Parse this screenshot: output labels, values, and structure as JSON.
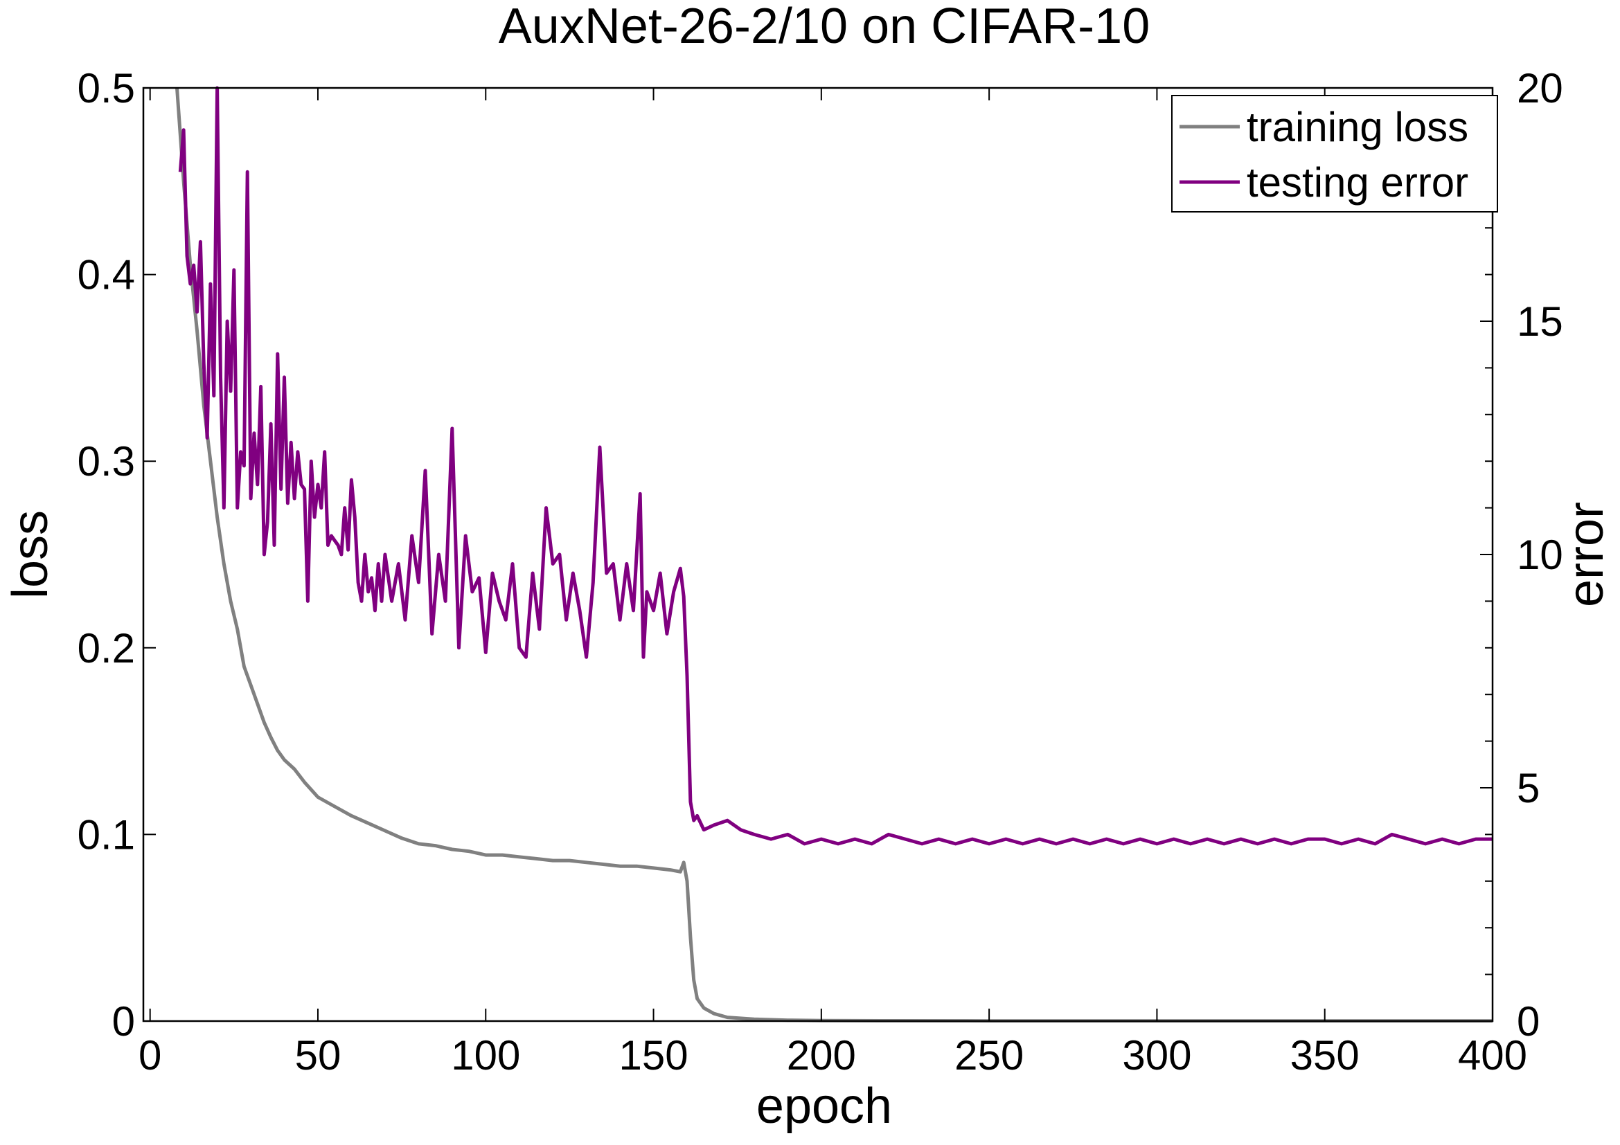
{
  "chart_data": {
    "type": "line",
    "title": "AuxNet-26-2/10 on CIFAR-10",
    "xlabel": "epoch",
    "ylabel": "loss",
    "y2label": "error",
    "xlim": [
      -2,
      400
    ],
    "ylim": [
      0,
      0.5
    ],
    "y2lim": [
      0,
      20
    ],
    "xticks": [
      0,
      50,
      100,
      150,
      200,
      250,
      300,
      350,
      400
    ],
    "yticks": [
      "0",
      "0.1",
      "0.2",
      "0.3",
      "0.4",
      "0.5"
    ],
    "y2ticks": [
      0,
      5,
      10,
      15,
      20
    ],
    "grid": false,
    "legend": "top-right",
    "series": [
      {
        "name": "training loss",
        "axis": "left",
        "color": "#808080",
        "x": [
          8,
          10,
          12,
          14,
          16,
          18,
          20,
          22,
          24,
          26,
          28,
          30,
          32,
          34,
          36,
          38,
          40,
          43,
          46,
          50,
          55,
          60,
          65,
          70,
          75,
          80,
          85,
          90,
          95,
          100,
          105,
          110,
          115,
          120,
          125,
          130,
          135,
          140,
          145,
          150,
          155,
          158,
          159,
          160,
          161,
          162,
          163,
          165,
          168,
          172,
          180,
          190,
          200,
          220,
          250,
          300,
          350,
          400
        ],
        "y": [
          0.5,
          0.45,
          0.405,
          0.37,
          0.33,
          0.3,
          0.27,
          0.245,
          0.225,
          0.21,
          0.19,
          0.18,
          0.17,
          0.16,
          0.152,
          0.145,
          0.14,
          0.135,
          0.128,
          0.12,
          0.115,
          0.11,
          0.106,
          0.102,
          0.098,
          0.095,
          0.094,
          0.092,
          0.091,
          0.089,
          0.089,
          0.088,
          0.087,
          0.086,
          0.086,
          0.085,
          0.084,
          0.083,
          0.083,
          0.082,
          0.081,
          0.08,
          0.085,
          0.075,
          0.045,
          0.022,
          0.012,
          0.007,
          0.004,
          0.002,
          0.001,
          0.0005,
          0.0003,
          0.0002,
          0.0001,
          0.0001,
          0.0001,
          0.0001
        ]
      },
      {
        "name": "testing error",
        "axis": "right",
        "color": "#800080",
        "x": [
          9,
          10,
          11,
          12,
          13,
          14,
          15,
          16,
          17,
          18,
          19,
          20,
          21,
          22,
          23,
          24,
          25,
          26,
          27,
          28,
          29,
          30,
          31,
          32,
          33,
          34,
          35,
          36,
          37,
          38,
          39,
          40,
          41,
          42,
          43,
          44,
          45,
          46,
          47,
          48,
          49,
          50,
          51,
          52,
          53,
          54,
          55,
          56,
          57,
          58,
          59,
          60,
          61,
          62,
          63,
          64,
          65,
          66,
          67,
          68,
          69,
          70,
          72,
          74,
          76,
          78,
          80,
          82,
          84,
          86,
          88,
          90,
          92,
          94,
          96,
          98,
          100,
          102,
          104,
          106,
          108,
          110,
          112,
          114,
          116,
          118,
          120,
          122,
          124,
          126,
          128,
          130,
          132,
          134,
          136,
          138,
          140,
          142,
          144,
          146,
          147,
          148,
          150,
          152,
          154,
          156,
          158,
          159,
          160,
          161,
          162,
          163,
          165,
          168,
          172,
          176,
          180,
          185,
          190,
          195,
          200,
          205,
          210,
          215,
          220,
          225,
          230,
          235,
          240,
          245,
          250,
          255,
          260,
          265,
          270,
          275,
          280,
          285,
          290,
          295,
          300,
          305,
          310,
          315,
          320,
          325,
          330,
          335,
          340,
          345,
          350,
          355,
          360,
          365,
          370,
          375,
          380,
          385,
          390,
          395,
          400
        ],
        "y": [
          18.2,
          19.1,
          16.4,
          15.8,
          16.2,
          15.2,
          16.7,
          14.1,
          12.5,
          15.8,
          13.4,
          20.0,
          13.8,
          11.0,
          15.0,
          13.5,
          16.1,
          11.0,
          12.2,
          11.9,
          18.2,
          11.2,
          12.6,
          11.5,
          13.6,
          10.0,
          10.7,
          12.8,
          10.2,
          14.3,
          11.4,
          13.8,
          11.1,
          12.4,
          11.2,
          12.2,
          11.5,
          11.4,
          9.0,
          12.0,
          10.8,
          11.5,
          11.0,
          12.2,
          10.2,
          10.4,
          10.3,
          10.2,
          10.0,
          11.0,
          10.1,
          11.6,
          10.8,
          9.4,
          9.0,
          10.0,
          9.2,
          9.5,
          8.8,
          9.8,
          9.0,
          10.0,
          9.0,
          9.8,
          8.6,
          10.4,
          9.4,
          11.8,
          8.3,
          10.0,
          9.0,
          12.7,
          8.0,
          10.4,
          9.2,
          9.5,
          7.9,
          9.6,
          9.0,
          8.6,
          9.8,
          8.0,
          7.8,
          9.6,
          8.4,
          11.0,
          9.8,
          10.0,
          8.6,
          9.6,
          8.8,
          7.8,
          9.4,
          12.3,
          9.6,
          9.8,
          8.6,
          9.8,
          8.8,
          11.3,
          7.8,
          9.2,
          8.8,
          9.6,
          8.3,
          9.2,
          9.7,
          9.1,
          7.4,
          4.7,
          4.3,
          4.4,
          4.1,
          4.2,
          4.3,
          4.1,
          4.0,
          3.9,
          4.0,
          3.8,
          3.9,
          3.8,
          3.9,
          3.8,
          4.0,
          3.9,
          3.8,
          3.9,
          3.8,
          3.9,
          3.8,
          3.9,
          3.8,
          3.9,
          3.8,
          3.9,
          3.8,
          3.9,
          3.8,
          3.9,
          3.8,
          3.9,
          3.8,
          3.9,
          3.8,
          3.9,
          3.8,
          3.9,
          3.8,
          3.9,
          3.9,
          3.8,
          3.9,
          3.8,
          4.0,
          3.9,
          3.8,
          3.9,
          3.8,
          3.9,
          3.9
        ]
      }
    ]
  }
}
